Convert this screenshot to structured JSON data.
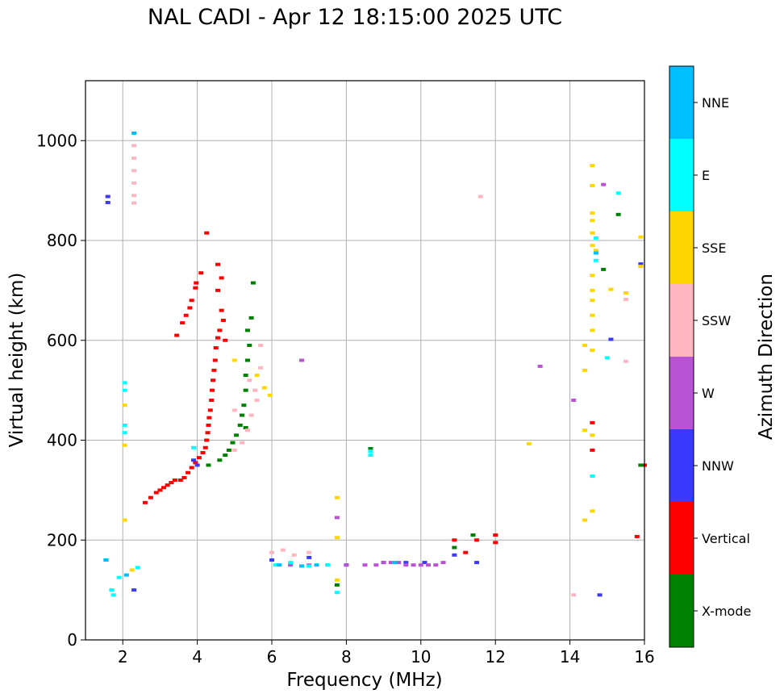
{
  "chart_data": {
    "type": "scatter",
    "title": "NAL CADI - Apr 12 18:15:00 2025 UTC",
    "xlabel": "Frequency (MHz)",
    "ylabel": "Virtual height (km)",
    "xlim": [
      1,
      16
    ],
    "ylim": [
      0,
      1120
    ],
    "xticks": [
      2,
      4,
      6,
      8,
      10,
      12,
      14,
      16
    ],
    "yticks": [
      0,
      200,
      400,
      600,
      800,
      1000
    ],
    "grid": true,
    "colorbar": {
      "label": "Azimuth Direction",
      "categories": [
        "X-mode",
        "Vertical",
        "NNW",
        "W",
        "SSW",
        "SSE",
        "E",
        "NNE"
      ],
      "colors": [
        "#008000",
        "#ff0000",
        "#3a3aff",
        "#b854d4",
        "#ffb6c1",
        "#ffd700",
        "#00ffff",
        "#00bfff"
      ]
    },
    "series": [
      {
        "name": "Vertical",
        "points": [
          [
            2.6,
            275
          ],
          [
            2.75,
            285
          ],
          [
            2.9,
            295
          ],
          [
            3.0,
            300
          ],
          [
            3.1,
            305
          ],
          [
            3.2,
            310
          ],
          [
            3.3,
            315
          ],
          [
            3.4,
            320
          ],
          [
            3.55,
            320
          ],
          [
            3.65,
            325
          ],
          [
            3.75,
            335
          ],
          [
            3.85,
            345
          ],
          [
            3.95,
            355
          ],
          [
            4.05,
            365
          ],
          [
            4.15,
            375
          ],
          [
            4.22,
            385
          ],
          [
            4.25,
            400
          ],
          [
            4.28,
            415
          ],
          [
            4.3,
            430
          ],
          [
            4.32,
            445
          ],
          [
            4.35,
            460
          ],
          [
            4.38,
            480
          ],
          [
            4.4,
            500
          ],
          [
            4.42,
            520
          ],
          [
            4.45,
            540
          ],
          [
            4.48,
            560
          ],
          [
            4.5,
            585
          ],
          [
            4.55,
            605
          ],
          [
            4.6,
            620
          ],
          [
            4.7,
            640
          ],
          [
            4.65,
            660
          ],
          [
            4.75,
            600
          ],
          [
            3.45,
            610
          ],
          [
            3.6,
            635
          ],
          [
            3.7,
            650
          ],
          [
            3.8,
            665
          ],
          [
            3.85,
            680
          ],
          [
            3.95,
            705
          ],
          [
            3.97,
            715
          ],
          [
            4.1,
            735
          ],
          [
            4.25,
            815
          ],
          [
            4.55,
            752
          ],
          [
            4.55,
            700
          ],
          [
            4.65,
            725
          ],
          [
            12.0,
            210
          ],
          [
            12.0,
            195
          ],
          [
            11.5,
            200
          ],
          [
            11.2,
            175
          ],
          [
            10.9,
            200
          ],
          [
            15.8,
            207
          ],
          [
            14.6,
            380
          ],
          [
            14.6,
            435
          ],
          [
            16.0,
            350
          ]
        ]
      },
      {
        "name": "X-mode",
        "points": [
          [
            4.3,
            350
          ],
          [
            4.6,
            360
          ],
          [
            4.75,
            370
          ],
          [
            4.85,
            380
          ],
          [
            4.95,
            395
          ],
          [
            5.05,
            410
          ],
          [
            5.15,
            430
          ],
          [
            5.2,
            450
          ],
          [
            5.25,
            470
          ],
          [
            5.3,
            500
          ],
          [
            5.3,
            530
          ],
          [
            5.35,
            560
          ],
          [
            5.4,
            590
          ],
          [
            5.35,
            620
          ],
          [
            5.45,
            645
          ],
          [
            5.5,
            715
          ],
          [
            5.3,
            425
          ],
          [
            8.65,
            383
          ],
          [
            10.9,
            185
          ],
          [
            11.4,
            210
          ],
          [
            14.9,
            742
          ],
          [
            15.3,
            852
          ],
          [
            15.9,
            350
          ],
          [
            7.75,
            110
          ]
        ]
      },
      {
        "name": "NNW",
        "points": [
          [
            1.6,
            888
          ],
          [
            1.6,
            876
          ],
          [
            1.55,
            160
          ],
          [
            2.3,
            100
          ],
          [
            3.9,
            360
          ],
          [
            4.0,
            350
          ],
          [
            6.0,
            160
          ],
          [
            7.0,
            165
          ],
          [
            8.0,
            150
          ],
          [
            9.0,
            155
          ],
          [
            9.6,
            155
          ],
          [
            10.1,
            155
          ],
          [
            10.9,
            170
          ],
          [
            11.5,
            155
          ],
          [
            14.8,
            90
          ],
          [
            15.1,
            602
          ],
          [
            15.9,
            753
          ]
        ]
      },
      {
        "name": "W",
        "points": [
          [
            6.5,
            150
          ],
          [
            7.0,
            150
          ],
          [
            7.5,
            150
          ],
          [
            8.0,
            150
          ],
          [
            8.5,
            150
          ],
          [
            8.8,
            150
          ],
          [
            9.0,
            155
          ],
          [
            9.2,
            155
          ],
          [
            9.4,
            155
          ],
          [
            9.6,
            150
          ],
          [
            9.8,
            150
          ],
          [
            10.0,
            150
          ],
          [
            10.2,
            150
          ],
          [
            10.4,
            150
          ],
          [
            10.6,
            155
          ],
          [
            6.8,
            560
          ],
          [
            13.2,
            548
          ],
          [
            14.1,
            480
          ],
          [
            14.9,
            912
          ],
          [
            7.75,
            245
          ]
        ]
      },
      {
        "name": "SSW",
        "points": [
          [
            2.3,
            990
          ],
          [
            2.3,
            965
          ],
          [
            2.3,
            940
          ],
          [
            2.3,
            915
          ],
          [
            2.3,
            890
          ],
          [
            2.3,
            875
          ],
          [
            5.0,
            380
          ],
          [
            5.2,
            395
          ],
          [
            5.35,
            420
          ],
          [
            5.45,
            450
          ],
          [
            5.6,
            480
          ],
          [
            5.55,
            500
          ],
          [
            5.4,
            520
          ],
          [
            5.7,
            545
          ],
          [
            5.7,
            590
          ],
          [
            5.0,
            460
          ],
          [
            6.0,
            175
          ],
          [
            6.3,
            180
          ],
          [
            6.6,
            170
          ],
          [
            7.0,
            175
          ],
          [
            11.6,
            888
          ],
          [
            14.1,
            90
          ],
          [
            15.5,
            558
          ],
          [
            15.5,
            682
          ]
        ]
      },
      {
        "name": "SSE",
        "points": [
          [
            2.05,
            470
          ],
          [
            2.05,
            390
          ],
          [
            2.05,
            240
          ],
          [
            2.25,
            140
          ],
          [
            5.6,
            530
          ],
          [
            5.8,
            505
          ],
          [
            5.95,
            490
          ],
          [
            5.0,
            560
          ],
          [
            7.75,
            285
          ],
          [
            7.75,
            205
          ],
          [
            7.75,
            120
          ],
          [
            12.9,
            393
          ],
          [
            14.4,
            240
          ],
          [
            14.6,
            258
          ],
          [
            14.4,
            420
          ],
          [
            14.4,
            540
          ],
          [
            14.4,
            590
          ],
          [
            14.6,
            410
          ],
          [
            14.6,
            580
          ],
          [
            14.6,
            620
          ],
          [
            14.6,
            650
          ],
          [
            14.6,
            680
          ],
          [
            14.6,
            700
          ],
          [
            14.6,
            730
          ],
          [
            14.6,
            790
          ],
          [
            14.6,
            815
          ],
          [
            14.6,
            840
          ],
          [
            14.6,
            855
          ],
          [
            14.6,
            910
          ],
          [
            14.6,
            950
          ],
          [
            14.7,
            780
          ],
          [
            15.1,
            702
          ],
          [
            15.5,
            695
          ],
          [
            15.9,
            807
          ],
          [
            15.9,
            748
          ]
        ]
      },
      {
        "name": "E",
        "points": [
          [
            2.05,
            515
          ],
          [
            2.05,
            500
          ],
          [
            2.05,
            430
          ],
          [
            2.05,
            415
          ],
          [
            1.7,
            100
          ],
          [
            1.75,
            90
          ],
          [
            1.9,
            125
          ],
          [
            2.4,
            145
          ],
          [
            6.1,
            150
          ],
          [
            6.5,
            155
          ],
          [
            7.0,
            148
          ],
          [
            7.5,
            150
          ],
          [
            7.75,
            95
          ],
          [
            8.65,
            370
          ],
          [
            8.65,
            378
          ],
          [
            14.6,
            328
          ],
          [
            14.7,
            760
          ],
          [
            14.7,
            805
          ],
          [
            15.0,
            565
          ],
          [
            15.3,
            895
          ],
          [
            3.9,
            385
          ]
        ]
      },
      {
        "name": "NNE",
        "points": [
          [
            2.3,
            1015
          ],
          [
            1.55,
            160
          ],
          [
            2.1,
            130
          ],
          [
            6.2,
            150
          ],
          [
            6.8,
            148
          ],
          [
            7.2,
            150
          ],
          [
            9.3,
            155
          ],
          [
            14.7,
            775
          ]
        ]
      }
    ]
  }
}
